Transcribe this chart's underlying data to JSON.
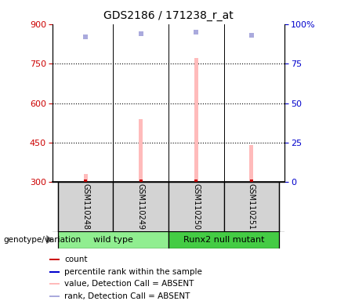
{
  "title": "GDS2186 / 171238_r_at",
  "samples": [
    "GSM110248",
    "GSM110249",
    "GSM110250",
    "GSM110251"
  ],
  "x_positions": [
    1,
    2,
    3,
    4
  ],
  "bar_values": [
    330,
    540,
    770,
    440
  ],
  "bar_color": "#ffbbbb",
  "dot_values_pct": [
    92,
    94,
    95,
    93
  ],
  "dot_color": "#aaaadd",
  "count_color": "#cc0000",
  "percentile_color": "#0000cc",
  "ylim_left": [
    300,
    900
  ],
  "ylim_right": [
    0,
    100
  ],
  "yticks_left": [
    300,
    450,
    600,
    750,
    900
  ],
  "yticks_right": [
    0,
    25,
    50,
    75,
    100
  ],
  "ytick_labels_right": [
    "0",
    "25",
    "50",
    "75",
    "100%"
  ],
  "grid_values": [
    450,
    600,
    750
  ],
  "group1_color": "#90ee90",
  "group2_color": "#44cc44",
  "genotype_label": "genotype/variation",
  "legend_items": [
    {
      "color": "#cc0000",
      "label": "count"
    },
    {
      "color": "#0000cc",
      "label": "percentile rank within the sample"
    },
    {
      "color": "#ffbbbb",
      "label": "value, Detection Call = ABSENT"
    },
    {
      "color": "#aaaadd",
      "label": "rank, Detection Call = ABSENT"
    }
  ]
}
